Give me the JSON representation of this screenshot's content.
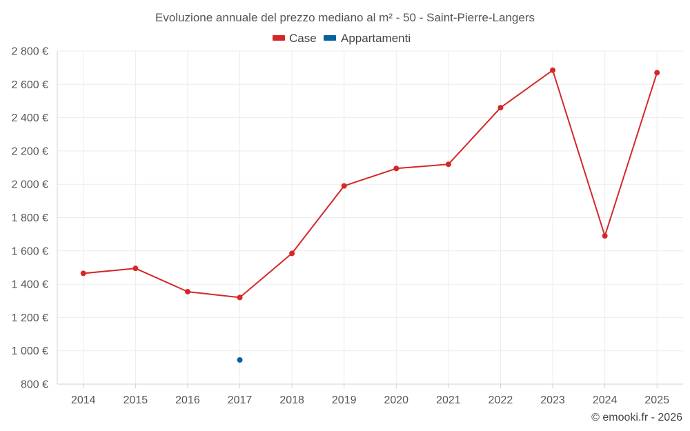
{
  "chart_data": {
    "type": "line",
    "title": "Evoluzione annuale del prezzo mediano al m² - 50 - Saint-Pierre-Langers",
    "categories": [
      "2014",
      "2015",
      "2016",
      "2017",
      "2018",
      "2019",
      "2020",
      "2021",
      "2022",
      "2023",
      "2024",
      "2025"
    ],
    "ylim": [
      800,
      2800
    ],
    "yticks": [
      800,
      1000,
      1200,
      1400,
      1600,
      1800,
      2000,
      2200,
      2400,
      2600,
      2800
    ],
    "ytick_labels": [
      "800 €",
      "1 000 €",
      "1 200 €",
      "1 400 €",
      "1 600 €",
      "1 800 €",
      "2 000 €",
      "2 200 €",
      "2 400 €",
      "2 600 €",
      "2 800 €"
    ],
    "grid": true,
    "legend_position": "top-center",
    "series": [
      {
        "name": "Case",
        "color": "#d62728",
        "values": [
          1465,
          1495,
          1355,
          1320,
          1585,
          1990,
          2095,
          2120,
          2460,
          2685,
          1690,
          2670
        ]
      },
      {
        "name": "Appartamenti",
        "color": "#08619c",
        "values": [
          null,
          null,
          null,
          945,
          null,
          null,
          null,
          null,
          null,
          null,
          null,
          null
        ]
      }
    ]
  },
  "credit": "© emooki.fr - 2026"
}
